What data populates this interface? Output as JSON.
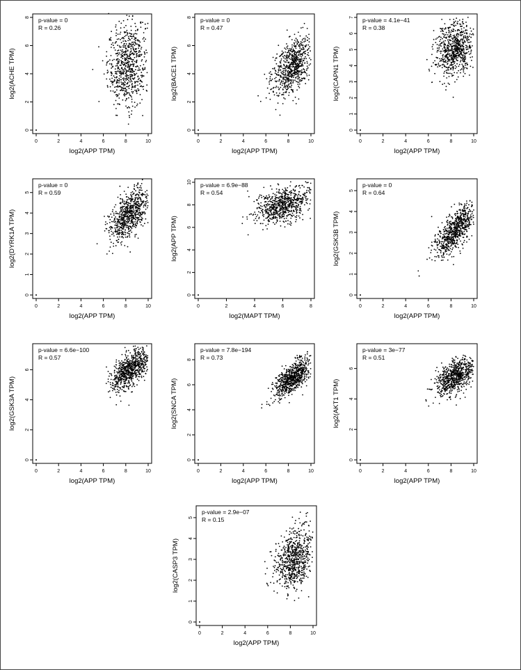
{
  "figure_title": "",
  "panel_annotation_labels": {
    "p": "p-value = ",
    "r": "R = "
  },
  "chart_data": [
    {
      "type": "scatter",
      "ylabel": "log2(ACHE TPM)",
      "xlabel": "log2(APP TPM)",
      "xlim": [
        0,
        10
      ],
      "ylim": [
        0,
        8
      ],
      "xticks": [
        0,
        2,
        4,
        6,
        8,
        10
      ],
      "yticks": [
        0,
        2,
        4,
        6,
        8
      ],
      "annotation": {
        "p_value": "0",
        "R": "0.26"
      },
      "cloud": {
        "center": [
          8.2,
          4.7
        ],
        "sd": [
          0.9,
          1.5
        ],
        "slope": 0.5,
        "n": 700,
        "xrange": [
          4.4,
          10.0
        ],
        "yrange": [
          0.4,
          8.3
        ]
      },
      "outlier": [
        0,
        0
      ]
    },
    {
      "type": "scatter",
      "ylabel": "log2(BACE1 TPM)",
      "xlabel": "log2(APP TPM)",
      "xlim": [
        0,
        10
      ],
      "ylim": [
        0,
        8
      ],
      "xticks": [
        0,
        2,
        4,
        6,
        8,
        10
      ],
      "yticks": [
        0,
        2,
        4,
        6,
        8
      ],
      "annotation": {
        "p_value": "0",
        "R": "0.47"
      },
      "cloud": {
        "center": [
          8.3,
          4.5
        ],
        "sd": [
          0.9,
          0.9
        ],
        "slope": 0.95,
        "n": 700,
        "xrange": [
          4.5,
          10.0
        ],
        "yrange": [
          1.0,
          7.8
        ]
      },
      "outlier": [
        0,
        0
      ]
    },
    {
      "type": "scatter",
      "ylabel": "log2(CAPN1 TPM)",
      "xlabel": "log2(APP TPM)",
      "xlim": [
        0,
        10
      ],
      "ylim": [
        0,
        7
      ],
      "xticks": [
        0,
        2,
        4,
        6,
        8,
        10
      ],
      "yticks": [
        0,
        1,
        2,
        3,
        4,
        5,
        6,
        7
      ],
      "annotation": {
        "p_value": "4.1e−41",
        "R": "0.38"
      },
      "cloud": {
        "center": [
          8.3,
          5.0
        ],
        "sd": [
          0.85,
          0.85
        ],
        "slope": 0.45,
        "n": 700,
        "xrange": [
          5.0,
          10.0
        ],
        "yrange": [
          2.0,
          7.0
        ]
      },
      "outlier": [
        0,
        0
      ]
    },
    {
      "type": "scatter",
      "ylabel": "log2(DYRK1A TPM)",
      "xlabel": "log2(APP TPM)",
      "xlim": [
        0,
        10
      ],
      "ylim": [
        0,
        5.5
      ],
      "xticks": [
        0,
        2,
        4,
        6,
        8,
        10
      ],
      "yticks": [
        0,
        1,
        2,
        3,
        4,
        5
      ],
      "annotation": {
        "p_value": "0",
        "R": "0.59"
      },
      "cloud": {
        "center": [
          8.3,
          3.9
        ],
        "sd": [
          0.9,
          0.55
        ],
        "slope": 0.7,
        "n": 700,
        "xrange": [
          4.5,
          10.0
        ],
        "yrange": [
          1.3,
          5.8
        ]
      },
      "outlier": [
        0,
        0
      ]
    },
    {
      "type": "scatter",
      "ylabel": "log2(APP TPM)",
      "xlabel": "log2(MAPT TPM)",
      "xlim": [
        0,
        8
      ],
      "ylim": [
        0,
        10
      ],
      "xticks": [
        0,
        2,
        4,
        6,
        8
      ],
      "yticks": [
        0,
        2,
        4,
        6,
        8,
        10
      ],
      "annotation": {
        "p_value": "6.9e−88",
        "R": "0.54"
      },
      "cloud": {
        "center": [
          6.0,
          8.0
        ],
        "sd": [
          1.0,
          0.8
        ],
        "slope": 0.55,
        "n": 700,
        "xrange": [
          2.0,
          8.0
        ],
        "yrange": [
          4.5,
          10.2
        ]
      },
      "outlier": [
        0,
        0
      ]
    },
    {
      "type": "scatter",
      "ylabel": "log2(GSK3B TPM)",
      "xlabel": "log2(APP TPM)",
      "xlim": [
        0,
        10
      ],
      "ylim": [
        0,
        5.4
      ],
      "xticks": [
        0,
        2,
        4,
        6,
        8,
        10
      ],
      "yticks": [
        0,
        1,
        2,
        3,
        4,
        5
      ],
      "annotation": {
        "p_value": "0",
        "R": "0.64"
      },
      "cloud": {
        "center": [
          8.3,
          3.1
        ],
        "sd": [
          0.9,
          0.45
        ],
        "slope": 0.8,
        "n": 700,
        "xrange": [
          4.5,
          10.0
        ],
        "yrange": [
          0.9,
          5.4
        ]
      },
      "outlier": [
        0,
        0
      ]
    },
    {
      "type": "scatter",
      "ylabel": "log2(GSK3A TPM)",
      "xlabel": "log2(APP TPM)",
      "xlim": [
        0,
        10
      ],
      "ylim": [
        0,
        7.5
      ],
      "xticks": [
        0,
        2,
        4,
        6,
        8,
        10
      ],
      "yticks": [
        0,
        2,
        4,
        6
      ],
      "annotation": {
        "p_value": "6.6e−100",
        "R": "0.57"
      },
      "cloud": {
        "center": [
          8.4,
          6.0
        ],
        "sd": [
          0.85,
          0.55
        ],
        "slope": 0.75,
        "n": 700,
        "xrange": [
          4.5,
          10.0
        ],
        "yrange": [
          2.0,
          7.6
        ]
      },
      "outlier": [
        0,
        0
      ]
    },
    {
      "type": "scatter",
      "ylabel": "log2(SNCA TPM)",
      "xlabel": "log2(APP TPM)",
      "xlim": [
        0,
        10
      ],
      "ylim": [
        0,
        9
      ],
      "xticks": [
        0,
        2,
        4,
        6,
        8,
        10
      ],
      "yticks": [
        0,
        2,
        4,
        6,
        8
      ],
      "annotation": {
        "p_value": "7.8e−194",
        "R": "0.73"
      },
      "cloud": {
        "center": [
          8.4,
          6.6
        ],
        "sd": [
          0.85,
          0.6
        ],
        "slope": 1.05,
        "n": 700,
        "xrange": [
          4.5,
          10.0
        ],
        "yrange": [
          1.9,
          9.2
        ]
      },
      "outlier": [
        0,
        0
      ]
    },
    {
      "type": "scatter",
      "ylabel": "log2(AKT1 TPM)",
      "xlabel": "log2(APP TPM)",
      "xlim": [
        0,
        10
      ],
      "ylim": [
        0,
        7.4
      ],
      "xticks": [
        0,
        2,
        4,
        6,
        8,
        10
      ],
      "yticks": [
        0,
        2,
        4,
        6
      ],
      "annotation": {
        "p_value": "3e−77",
        "R": "0.51"
      },
      "cloud": {
        "center": [
          8.4,
          5.5
        ],
        "sd": [
          0.85,
          0.55
        ],
        "slope": 0.6,
        "n": 700,
        "xrange": [
          4.5,
          10.0
        ],
        "yrange": [
          2.6,
          7.4
        ]
      },
      "outlier": [
        0,
        0
      ]
    },
    {
      "type": "scatter",
      "ylabel": "log2(CASP3 TPM)",
      "xlabel": "log2(APP TPM)",
      "xlim": [
        0,
        10
      ],
      "ylim": [
        0,
        5.4
      ],
      "xticks": [
        0,
        2,
        4,
        6,
        8,
        10
      ],
      "yticks": [
        0,
        1,
        2,
        3,
        4,
        5
      ],
      "annotation": {
        "p_value": "2.9e−07",
        "R": "0.15"
      },
      "cloud": {
        "center": [
          8.4,
          3.0
        ],
        "sd": [
          0.85,
          0.7
        ],
        "slope": 0.35,
        "n": 700,
        "xrange": [
          4.5,
          10.0
        ],
        "yrange": [
          1.0,
          5.3
        ]
      },
      "outlier": [
        0,
        0
      ]
    }
  ]
}
